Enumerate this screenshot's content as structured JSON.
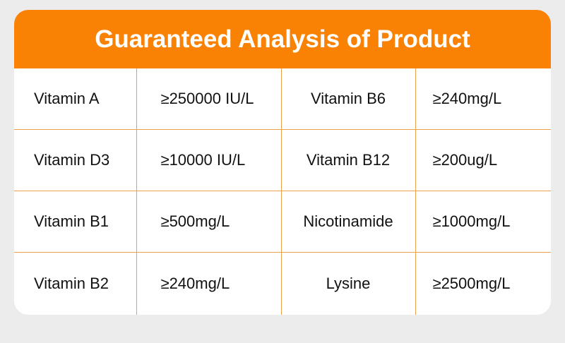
{
  "title": "Guaranteed Analysis of Product",
  "colors": {
    "header": "#f98103",
    "border": "#e9a24a",
    "background": "#ececec"
  },
  "rows": [
    {
      "name1": "Vitamin A",
      "value1": "≥250000 IU/L",
      "name2": "Vitamin B6",
      "value2": "≥240mg/L"
    },
    {
      "name1": "Vitamin D3",
      "value1": "≥10000 IU/L",
      "name2": "Vitamin B12",
      "value2": "≥200ug/L"
    },
    {
      "name1": "Vitamin B1",
      "value1": "≥500mg/L",
      "name2": "Nicotinamide",
      "value2": "≥1000mg/L"
    },
    {
      "name1": "Vitamin B2",
      "value1": "≥240mg/L",
      "name2": "Lysine",
      "value2": "≥2500mg/L"
    }
  ]
}
